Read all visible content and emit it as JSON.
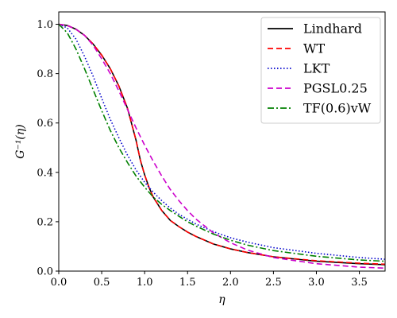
{
  "chart_data": {
    "type": "line",
    "xlabel": "η",
    "ylabel": "G⁻¹(η)",
    "xlim": [
      0,
      3.8
    ],
    "ylim": [
      0,
      1.05
    ],
    "x_ticks": [
      0.0,
      0.5,
      1.0,
      1.5,
      2.0,
      2.5,
      3.0,
      3.5
    ],
    "x_tick_labels": [
      "0.0",
      "0.5",
      "1.0",
      "1.5",
      "2.0",
      "2.5",
      "3.0",
      "3.5"
    ],
    "y_ticks": [
      0.0,
      0.2,
      0.4,
      0.6,
      0.8,
      1.0
    ],
    "y_tick_labels": [
      "0.0",
      "0.2",
      "0.4",
      "0.6",
      "0.8",
      "1.0"
    ],
    "grid": false,
    "legend_position": "top-right",
    "series": [
      {
        "name": "Lindhard",
        "color": "#000000",
        "dash": "solid",
        "x": [
          0,
          0.1,
          0.2,
          0.3,
          0.4,
          0.5,
          0.6,
          0.7,
          0.8,
          0.9,
          0.95,
          1.0,
          1.05,
          1.1,
          1.2,
          1.3,
          1.4,
          1.5,
          1.6,
          1.8,
          2.0,
          2.2,
          2.5,
          3.0,
          3.5,
          3.8
        ],
        "y": [
          1.0,
          0.995,
          0.98,
          0.955,
          0.92,
          0.875,
          0.82,
          0.75,
          0.66,
          0.53,
          0.45,
          0.39,
          0.34,
          0.3,
          0.245,
          0.205,
          0.18,
          0.158,
          0.14,
          0.11,
          0.09,
          0.075,
          0.058,
          0.04,
          0.03,
          0.026
        ]
      },
      {
        "name": "WT",
        "color": "#ff0000",
        "dash": "dashed",
        "x": [
          0,
          0.1,
          0.2,
          0.3,
          0.4,
          0.5,
          0.6,
          0.7,
          0.8,
          0.9,
          0.95,
          1.0,
          1.05,
          1.1,
          1.2,
          1.3,
          1.4,
          1.5,
          1.6,
          1.8,
          2.0,
          2.2,
          2.5,
          3.0,
          3.5,
          3.8
        ],
        "y": [
          1.0,
          0.995,
          0.98,
          0.955,
          0.92,
          0.875,
          0.82,
          0.75,
          0.66,
          0.53,
          0.45,
          0.39,
          0.34,
          0.3,
          0.245,
          0.205,
          0.18,
          0.158,
          0.14,
          0.11,
          0.09,
          0.075,
          0.058,
          0.042,
          0.032,
          0.028
        ]
      },
      {
        "name": "LKT",
        "color": "#0000cc",
        "dash": "dotted",
        "x": [
          0,
          0.1,
          0.2,
          0.3,
          0.4,
          0.5,
          0.6,
          0.7,
          0.8,
          0.9,
          1.0,
          1.1,
          1.2,
          1.3,
          1.4,
          1.5,
          1.6,
          1.8,
          2.0,
          2.2,
          2.5,
          3.0,
          3.5,
          3.8
        ],
        "y": [
          1.0,
          0.985,
          0.94,
          0.87,
          0.79,
          0.7,
          0.615,
          0.54,
          0.47,
          0.41,
          0.36,
          0.32,
          0.285,
          0.255,
          0.23,
          0.21,
          0.19,
          0.16,
          0.135,
          0.117,
          0.095,
          0.072,
          0.055,
          0.048
        ]
      },
      {
        "name": "PGSL0.25",
        "color": "#cc00cc",
        "dash": "dashed",
        "x": [
          0,
          0.1,
          0.2,
          0.3,
          0.4,
          0.5,
          0.6,
          0.7,
          0.8,
          0.9,
          1.0,
          1.1,
          1.2,
          1.3,
          1.4,
          1.5,
          1.6,
          1.8,
          2.0,
          2.2,
          2.5,
          3.0,
          3.5,
          3.8
        ],
        "y": [
          1.0,
          0.995,
          0.98,
          0.955,
          0.915,
          0.86,
          0.8,
          0.73,
          0.655,
          0.58,
          0.51,
          0.445,
          0.385,
          0.33,
          0.285,
          0.245,
          0.21,
          0.155,
          0.115,
          0.085,
          0.055,
          0.03,
          0.016,
          0.012
        ]
      },
      {
        "name": "TF(0.6)vW",
        "color": "#008000",
        "dash": "dashdot",
        "x": [
          0,
          0.1,
          0.2,
          0.3,
          0.4,
          0.5,
          0.6,
          0.7,
          0.8,
          0.9,
          1.0,
          1.1,
          1.2,
          1.3,
          1.4,
          1.5,
          1.6,
          1.8,
          2.0,
          2.2,
          2.5,
          3.0,
          3.5,
          3.8
        ],
        "y": [
          1.0,
          0.965,
          0.9,
          0.82,
          0.735,
          0.65,
          0.57,
          0.5,
          0.44,
          0.385,
          0.34,
          0.3,
          0.27,
          0.245,
          0.222,
          0.2,
          0.182,
          0.15,
          0.125,
          0.105,
          0.083,
          0.06,
          0.045,
          0.04
        ]
      }
    ]
  }
}
